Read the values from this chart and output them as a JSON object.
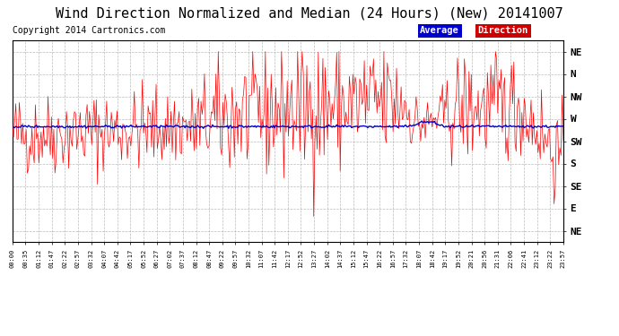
{
  "title": "Wind Direction Normalized and Median (24 Hours) (New) 20141007",
  "copyright": "Copyright 2014 Cartronics.com",
  "background_color": "#ffffff",
  "plot_bg_color": "#ffffff",
  "grid_color": "#aaaaaa",
  "ytick_labels": [
    "NE",
    "N",
    "NW",
    "W",
    "SW",
    "S",
    "SE",
    "E",
    "NE"
  ],
  "ytick_values": [
    8,
    7,
    6,
    5,
    4,
    3,
    2,
    1,
    0
  ],
  "ylim": [
    -0.5,
    8.5
  ],
  "direction_line_color": "#ff0000",
  "average_line_color": "#0000cc",
  "legend_average_bg": "#0000cc",
  "legend_direction_bg": "#cc0000",
  "legend_text_color": "#ffffff",
  "title_fontsize": 11,
  "copyright_fontsize": 7,
  "xtick_labels": [
    "00:00",
    "00:35",
    "01:12",
    "01:47",
    "02:22",
    "02:57",
    "03:32",
    "04:07",
    "04:42",
    "05:17",
    "05:52",
    "06:27",
    "07:02",
    "07:37",
    "08:12",
    "08:47",
    "09:22",
    "09:57",
    "10:32",
    "11:07",
    "11:42",
    "12:17",
    "12:52",
    "13:27",
    "14:02",
    "14:37",
    "15:12",
    "15:47",
    "16:22",
    "16:57",
    "17:32",
    "18:07",
    "18:42",
    "19:17",
    "19:52",
    "20:21",
    "20:56",
    "21:31",
    "22:06",
    "22:41",
    "23:12",
    "23:22",
    "23:57"
  ]
}
